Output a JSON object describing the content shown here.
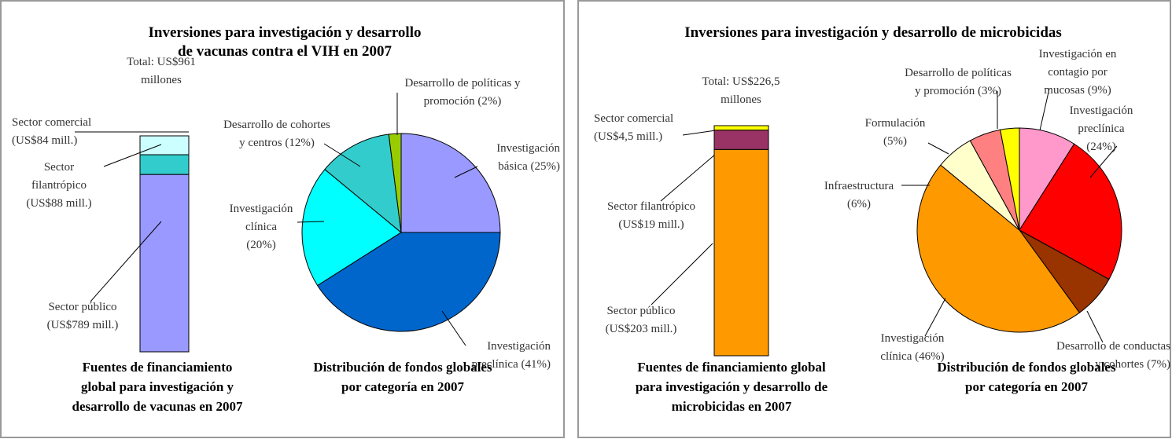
{
  "panels": [
    {
      "title": "Inversiones para investigación y desarrollo de vacunas contra el VIH en 2007"
    },
    {
      "title": "Inversiones para investigación y desarrollo de microbicidas"
    }
  ],
  "chart_data": [
    {
      "type": "bar",
      "stacked": true,
      "title": "Fuentes de financiamiento global para investigación y desarrollo de vacunas en 2007",
      "annotation": "Total: US$961 millones",
      "categories": [
        null
      ],
      "series": [
        {
          "name": "Sector comercial",
          "color": "#ccffff",
          "values": [
            84
          ],
          "value_labels": [
            "(US$84 mill.)"
          ]
        },
        {
          "name": "Sector filantrópico",
          "color": "#33cccc",
          "values": [
            88
          ],
          "value_labels": [
            "(US$88 mill.)"
          ]
        },
        {
          "name": "Sector público",
          "color": "#9999ff",
          "values": [
            789
          ],
          "value_labels": [
            "(US$789 mill.)"
          ]
        }
      ]
    },
    {
      "type": "pie",
      "title": "Distribución de fondos globales por categoría en 2007",
      "categories": [
        "Investigación básica",
        "Investigación preclínica",
        "Investigación clínica",
        "Desarrollo de cohortes y centros",
        "Desarrollo de políticas y promoción"
      ],
      "values": [
        25,
        41,
        20,
        12,
        2
      ],
      "value_labels": [
        "(25%)",
        "(41%)",
        "(20%)",
        "(12%)",
        "(2%)"
      ],
      "colors": [
        "#9999ff",
        "#0066cc",
        "#00ffff",
        "#33cccc",
        "#99cc00"
      ]
    },
    {
      "type": "bar",
      "stacked": true,
      "title": "Fuentes de financiamiento global para investigación y desarrollo de microbicidas en 2007",
      "annotation": "Total: US$226,5 millones",
      "categories": [
        null
      ],
      "series": [
        {
          "name": "Sector comercial",
          "color": "#ffff00",
          "values": [
            4.5
          ],
          "value_labels": [
            "(US$4,5 mill.)"
          ]
        },
        {
          "name": "Sector filantrópico",
          "color": "#993366",
          "values": [
            19
          ],
          "value_labels": [
            "(US$19 mill.)"
          ]
        },
        {
          "name": "Sector público",
          "color": "#ff9900",
          "values": [
            203
          ],
          "value_labels": [
            "(US$203 mill.)"
          ]
        }
      ]
    },
    {
      "type": "pie",
      "title": "Distribución de fondos globales por categoría en 2007",
      "categories": [
        "Investigación en contagio por mucosas",
        "Investigación preclínica",
        "Desarrollo de conductas y cohortes",
        "Investigación clínica",
        "Infraestructura",
        "Formulación",
        "Desarrollo de políticas y promoción"
      ],
      "values": [
        9,
        24,
        7,
        46,
        6,
        5,
        3
      ],
      "value_labels": [
        "(9%)",
        "(24%)",
        "(7%)",
        "(46%)",
        "(6%)",
        "(5%)",
        "(3%)"
      ],
      "colors": [
        "#ff99cc",
        "#ff0000",
        "#993300",
        "#ff9900",
        "#ffffcc",
        "#ff8080",
        "#ffff00"
      ]
    }
  ]
}
